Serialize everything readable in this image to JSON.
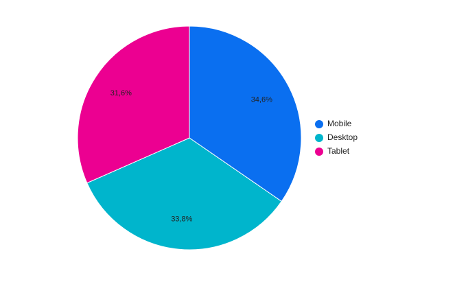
{
  "chart_data": {
    "type": "pie",
    "categories": [
      "Mobile",
      "Desktop",
      "Tablet"
    ],
    "values": [
      34.6,
      33.8,
      31.6
    ],
    "value_labels": [
      "34,6%",
      "33,8%",
      "31,6%"
    ],
    "colors": [
      "#0a6ff0",
      "#00b5cc",
      "#ec0091"
    ],
    "start_angle_deg": 0,
    "direction": "clockwise",
    "legend_position": "right"
  }
}
